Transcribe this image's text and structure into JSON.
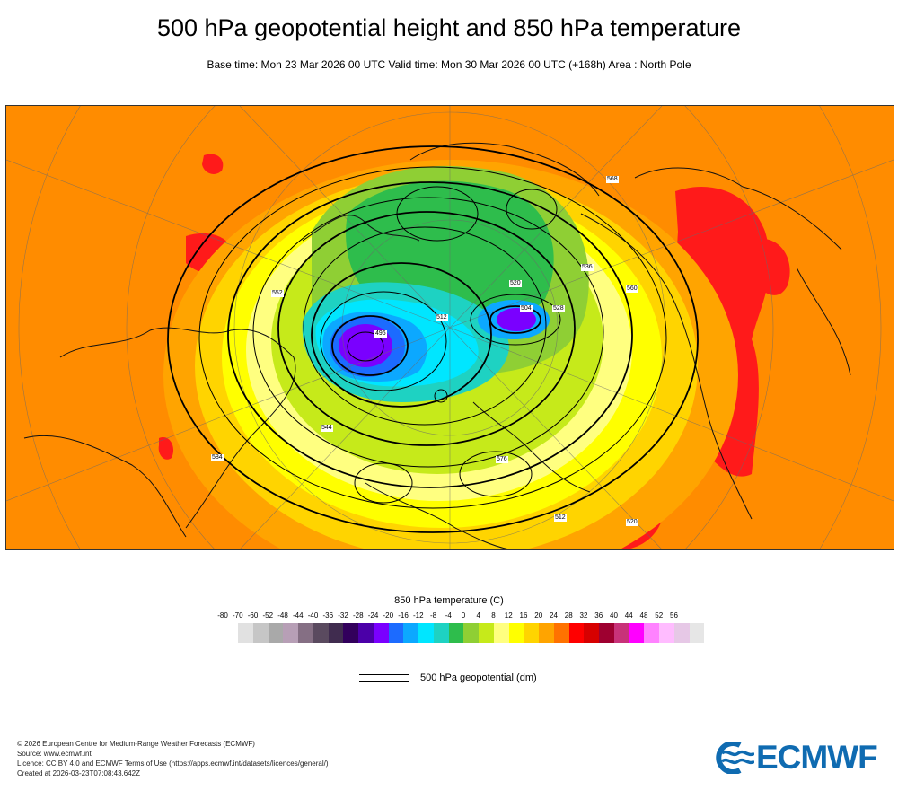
{
  "header": {
    "title": "500 hPa geopotential height and 850 hPa temperature",
    "subtitle": "Base time: Mon 23 Mar 2026 00 UTC Valid time: Mon 30 Mar 2026 00 UTC (+168h) Area : North Pole"
  },
  "map": {
    "area": "North Pole",
    "contour_labels": [
      "512",
      "520",
      "528",
      "536",
      "544",
      "552",
      "560",
      "568",
      "576",
      "584"
    ],
    "cold_core_labels": [
      "496",
      "504"
    ],
    "colors": {
      "warm": "#ff8c00",
      "hot": "#ff1a1a",
      "cold": "#6a00ff",
      "coastline": "#111111",
      "contour": "#000000"
    }
  },
  "legend": {
    "title": "850 hPa temperature (C)",
    "ticks": [
      "-80",
      "-70",
      "-60",
      "-52",
      "-48",
      "-44",
      "-40",
      "-36",
      "-32",
      "-28",
      "-24",
      "-20",
      "-16",
      "-12",
      "-8",
      "-4",
      "0",
      "4",
      "8",
      "12",
      "16",
      "20",
      "24",
      "28",
      "32",
      "36",
      "40",
      "44",
      "48",
      "52",
      "56"
    ],
    "colors": [
      "#e1e1e1",
      "#c6c6c6",
      "#a9a9a9",
      "#b79fb6",
      "#856f84",
      "#5a4a5f",
      "#402c4f",
      "#32005c",
      "#4b00a8",
      "#7a00ff",
      "#1c6bff",
      "#0ca8ff",
      "#00e6ff",
      "#1ed2c2",
      "#2ebd4c",
      "#8fcf34",
      "#c6ea1a",
      "#ffff80",
      "#ffff00",
      "#ffd400",
      "#ffa400",
      "#ff7200",
      "#ff0000",
      "#d70000",
      "#9e0030",
      "#c83279",
      "#ff00ff",
      "#ff82ff",
      "#ffbcff",
      "#e6c8e6",
      "#e6e6e6"
    ],
    "geopotential_label": "500 hPa geopotential (dm)"
  },
  "footer": {
    "lines": [
      "© 2026 European Centre for Medium-Range Weather Forecasts (ECMWF)",
      "Source: www.ecmwf.int",
      "Licence: CC BY 4.0 and ECMWF Terms of Use (https://apps.ecmwf.int/datasets/licences/general/)",
      "Created at 2026-03-23T07:08:43.642Z"
    ],
    "logo_text": "ECMWF",
    "logo_color": "#0f6bb1"
  }
}
